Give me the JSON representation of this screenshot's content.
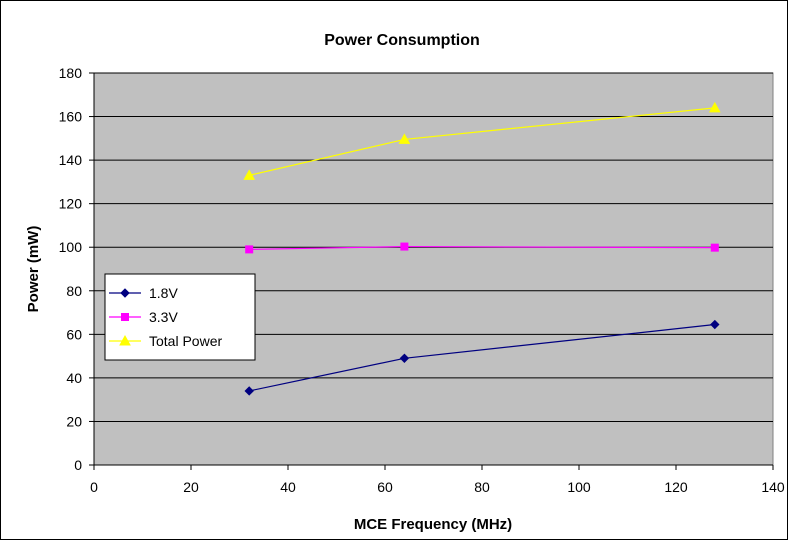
{
  "chart_data": {
    "type": "line",
    "title": "Power Consumption",
    "xlabel": "MCE Frequency (MHz)",
    "ylabel": "Power (mW)",
    "xlim": [
      0,
      140
    ],
    "ylim": [
      0,
      180
    ],
    "x_ticks": [
      0,
      20,
      40,
      60,
      80,
      100,
      120,
      140
    ],
    "y_ticks": [
      0,
      20,
      40,
      60,
      80,
      100,
      120,
      140,
      160,
      180
    ],
    "grid": "horizontal",
    "plot_background": "#c0c0c0",
    "legend_position": "left-middle",
    "series": [
      {
        "name": "1.8V",
        "x": [
          32,
          64,
          128
        ],
        "values": [
          34,
          49,
          64.5
        ],
        "color": "#000080",
        "marker": "diamond"
      },
      {
        "name": "3.3V",
        "x": [
          32,
          64,
          128
        ],
        "values": [
          99,
          100.3,
          99.8
        ],
        "color": "#ff00ff",
        "marker": "square"
      },
      {
        "name": "Total Power",
        "x": [
          32,
          64,
          128
        ],
        "values": [
          133,
          149.5,
          164
        ],
        "color": "#ffff00",
        "marker": "triangle"
      }
    ]
  }
}
